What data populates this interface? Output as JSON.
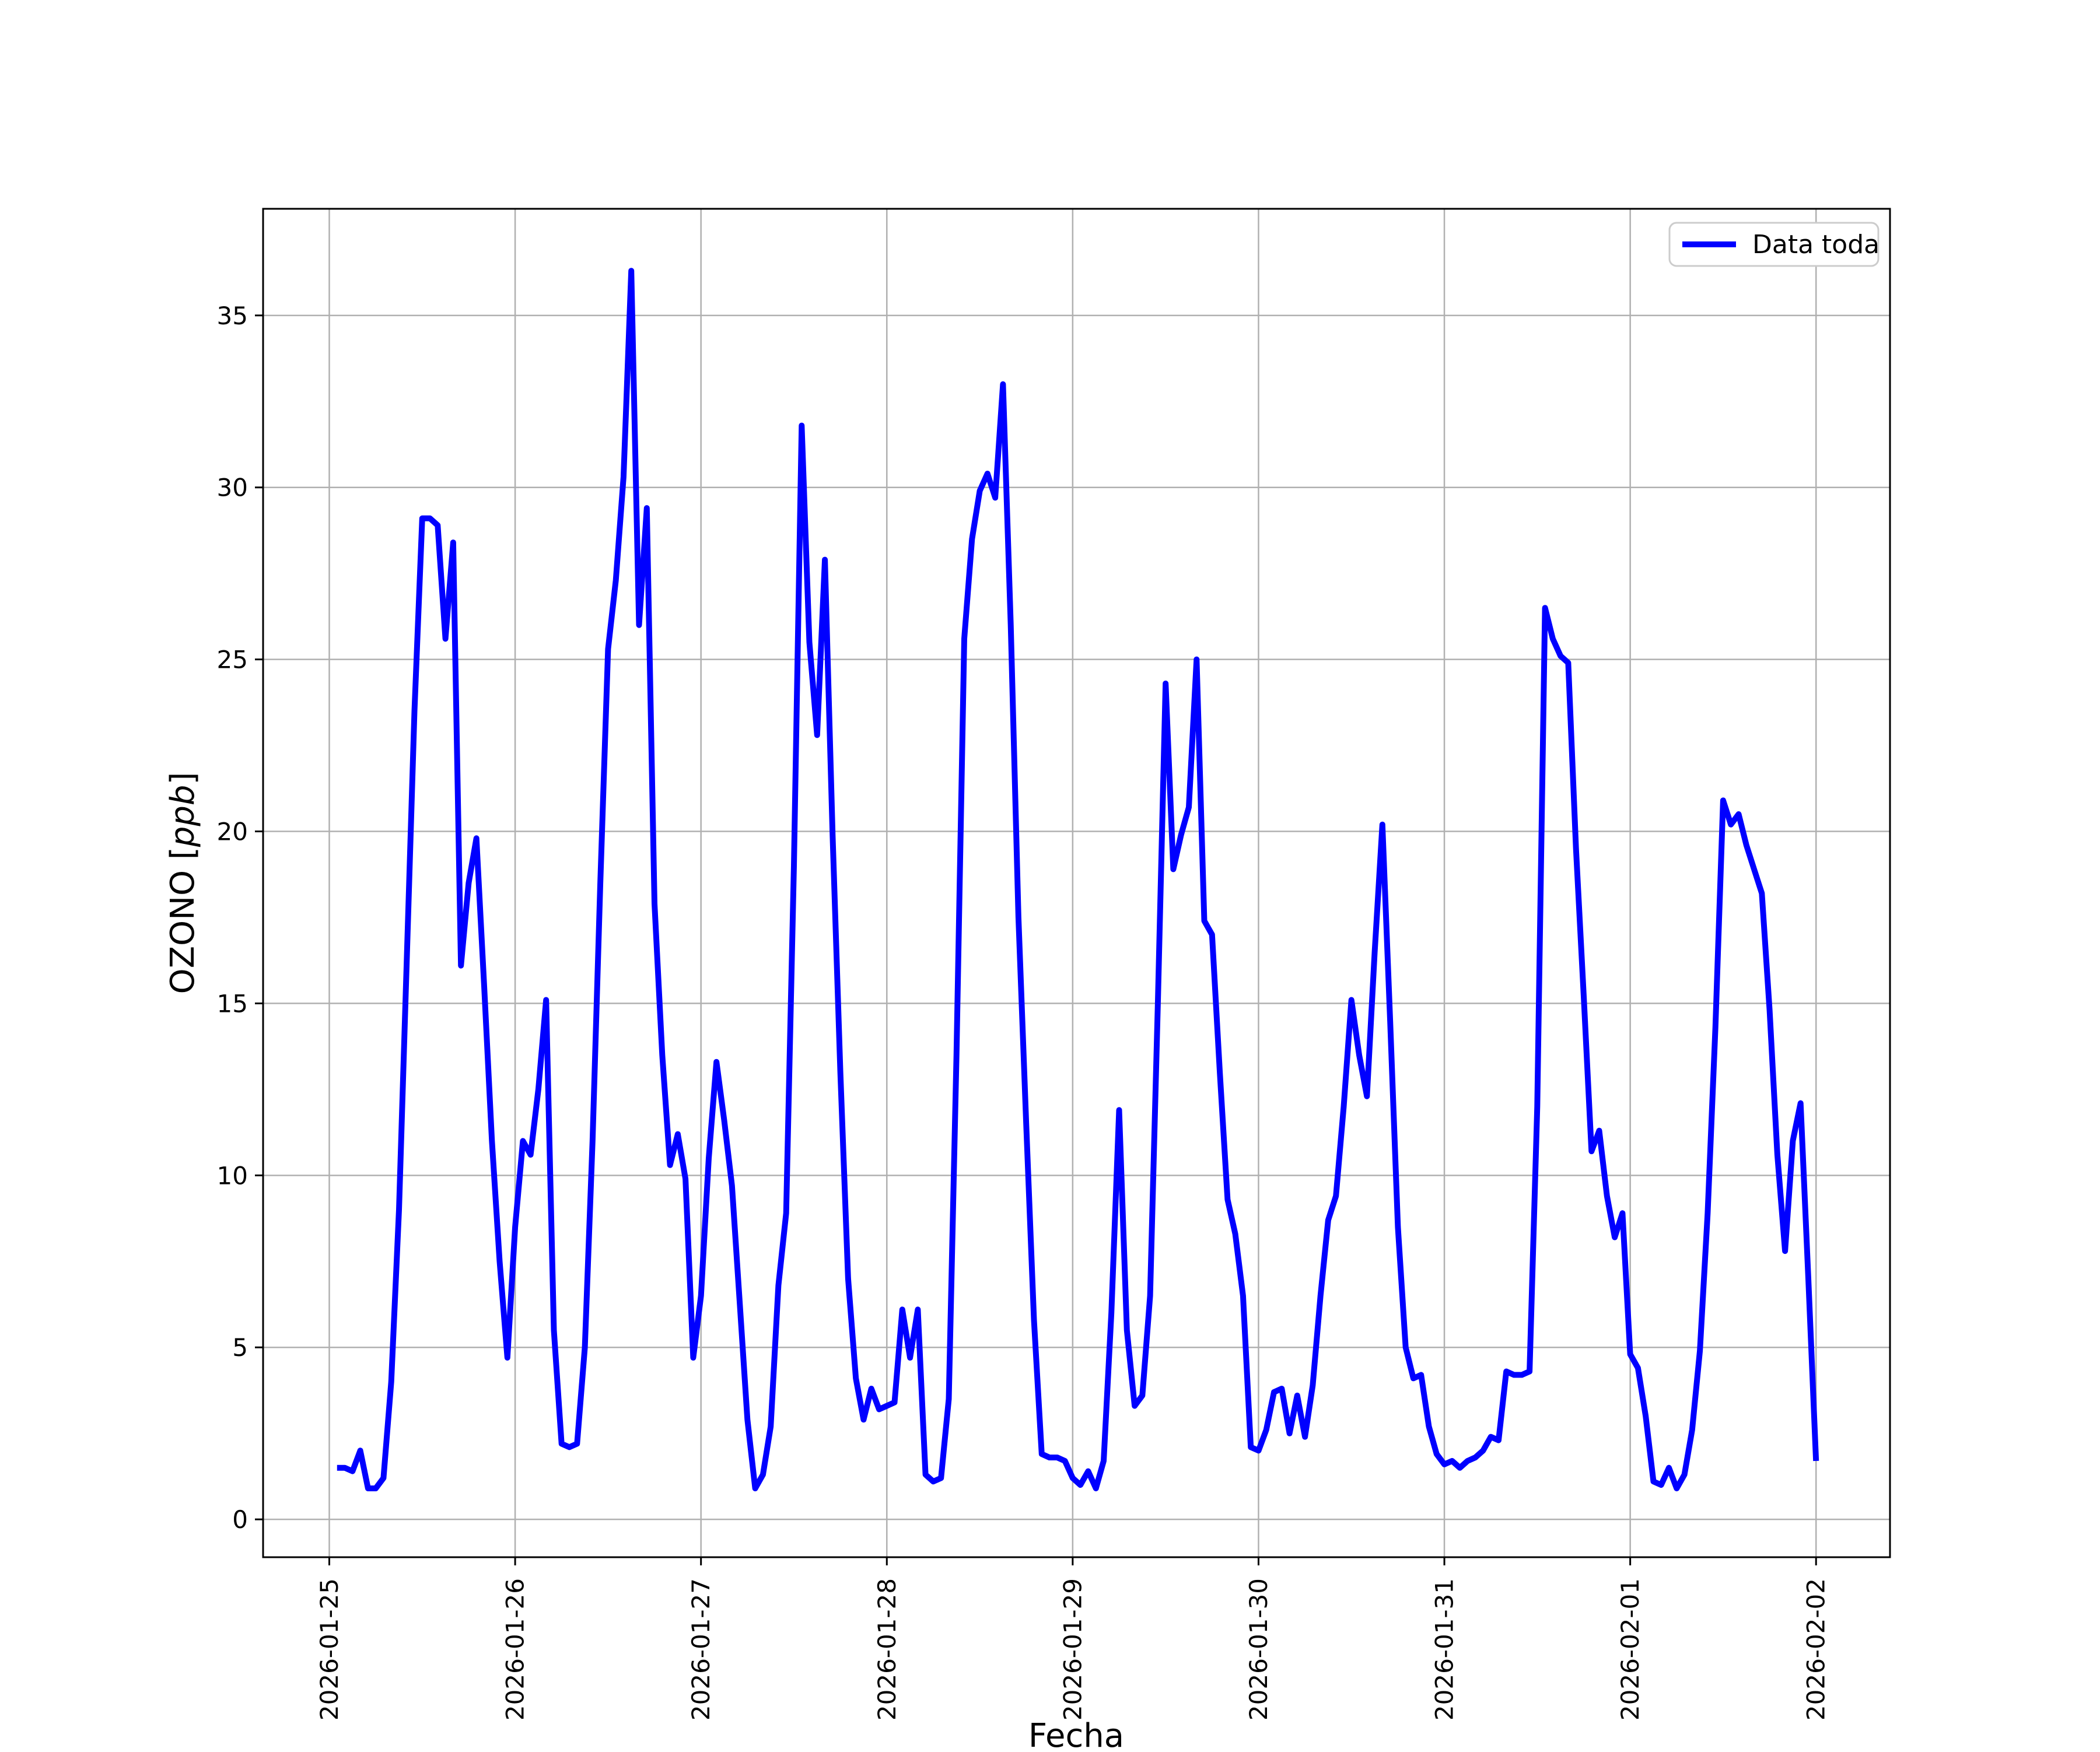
{
  "figure": {
    "background": "#ffffff",
    "legend": {
      "label": "Data toda",
      "border_color": "#cccccc",
      "fill": "#ffffff"
    },
    "xlabel": "Fecha",
    "ylabel_prefix": "OZONO [",
    "ylabel_italic": "ppb",
    "ylabel_suffix": "]"
  },
  "chart_data": {
    "type": "line",
    "title": "",
    "xlabel": "Fecha",
    "ylabel": "OZONO [ppb]",
    "legend_entries": [
      "Data toda"
    ],
    "legend_position": "upper right",
    "line_color": "#0000ff",
    "grid": true,
    "grid_color": "#b0b0b0",
    "x_tick_labels": [
      "2026-01-25",
      "2026-01-26",
      "2026-01-27",
      "2026-01-28",
      "2026-01-29",
      "2026-01-30",
      "2026-01-31",
      "2026-02-01",
      "2026-02-02"
    ],
    "day_tick_hours": [
      0,
      24,
      48,
      72,
      96,
      120,
      144,
      168,
      192
    ],
    "y_ticks": [
      0,
      5,
      10,
      15,
      20,
      25,
      30,
      35
    ],
    "ylim": [
      -1.1,
      38.1
    ],
    "x_range_hours": [
      -8.55,
      201.55
    ],
    "x_start": "2026-01-25 01:00",
    "x_step_hours": 1,
    "values": [
      1.5,
      1.5,
      1.4,
      2.0,
      0.9,
      0.9,
      1.2,
      4.0,
      9.0,
      16.2,
      23.5,
      29.1,
      29.1,
      28.9,
      25.6,
      28.4,
      16.1,
      18.5,
      19.8,
      15.5,
      11.0,
      7.5,
      4.7,
      8.5,
      11.0,
      10.6,
      12.5,
      15.1,
      5.5,
      2.2,
      2.1,
      2.2,
      5.0,
      11.0,
      18.5,
      25.3,
      27.3,
      30.3,
      36.3,
      26.0,
      29.4,
      17.9,
      13.5,
      10.3,
      11.2,
      9.9,
      4.7,
      6.5,
      10.5,
      13.3,
      11.6,
      9.7,
      6.3,
      2.9,
      0.9,
      1.3,
      2.7,
      6.8,
      8.9,
      19.0,
      31.8,
      25.5,
      22.8,
      27.9,
      19.9,
      13.0,
      7.0,
      4.1,
      2.9,
      3.8,
      3.2,
      3.3,
      3.4,
      6.1,
      4.7,
      6.1,
      1.3,
      1.1,
      1.2,
      3.5,
      13.5,
      25.6,
      28.5,
      29.9,
      30.4,
      29.7,
      33.0,
      26.0,
      17.5,
      11.5,
      5.8,
      1.9,
      1.8,
      1.8,
      1.7,
      1.2,
      1.0,
      1.4,
      0.9,
      1.7,
      6.0,
      11.9,
      5.5,
      3.3,
      3.6,
      6.5,
      15.0,
      24.3,
      18.9,
      19.9,
      20.7,
      25.0,
      17.4,
      17.0,
      13.0,
      9.3,
      8.3,
      6.5,
      2.1,
      2.0,
      2.6,
      3.7,
      3.8,
      2.5,
      3.6,
      2.4,
      3.9,
      6.5,
      8.7,
      9.4,
      12.0,
      15.1,
      13.5,
      12.3,
      16.5,
      20.2,
      14.5,
      8.5,
      5.0,
      4.1,
      4.2,
      2.7,
      1.9,
      1.6,
      1.7,
      1.5,
      1.7,
      1.8,
      2.0,
      2.4,
      2.3,
      4.3,
      4.2,
      4.2,
      4.3,
      12.0,
      26.5,
      25.6,
      25.1,
      24.9,
      19.5,
      15.2,
      10.7,
      11.3,
      9.4,
      8.2,
      8.9,
      4.8,
      4.4,
      3.0,
      1.1,
      1.0,
      1.5,
      0.9,
      1.3,
      2.6,
      4.9,
      8.9,
      14.3,
      20.9,
      20.2,
      20.5,
      19.6,
      18.9,
      18.2,
      14.8,
      10.6,
      7.8,
      11.0,
      12.1,
      7.0,
      1.7
    ]
  }
}
